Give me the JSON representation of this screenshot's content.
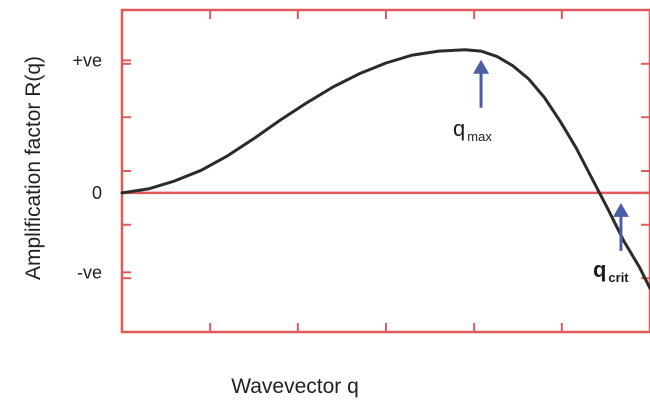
{
  "chart_data": {
    "type": "line",
    "xlabel": "Wavevector q",
    "ylabel": "Amplification factor R(q)",
    "ytick_labels": [
      "+ve",
      "0",
      "-ve"
    ],
    "y_tick_values": [
      1,
      0,
      -0.6
    ],
    "xlim": [
      0,
      1
    ],
    "ylim": [
      -1.05,
      1.38
    ],
    "grid": false,
    "series": [
      {
        "x": [
          0.0,
          0.05,
          0.1,
          0.15,
          0.2,
          0.25,
          0.3,
          0.35,
          0.4,
          0.45,
          0.5,
          0.55,
          0.6,
          0.65,
          0.68,
          0.71,
          0.74,
          0.77,
          0.8,
          0.83,
          0.86,
          0.89,
          0.92,
          0.95,
          0.98,
          1.0
        ],
        "y": [
          0.0,
          0.03,
          0.09,
          0.17,
          0.28,
          0.41,
          0.55,
          0.68,
          0.8,
          0.9,
          0.98,
          1.04,
          1.07,
          1.08,
          1.07,
          1.03,
          0.96,
          0.86,
          0.72,
          0.54,
          0.34,
          0.11,
          -0.12,
          -0.36,
          -0.56,
          -0.72
        ]
      }
    ],
    "annotations": [
      {
        "label": "q",
        "subscript": "max",
        "x": 0.68,
        "y": 1.08,
        "bold": false
      },
      {
        "label": "q",
        "subscript": "crit",
        "x": 0.945,
        "y": 0.0,
        "bold": true
      }
    ],
    "colors": {
      "frame": "#e05a5a",
      "curve": "#2b2b2b",
      "arrow": "#4a5fa8"
    }
  }
}
